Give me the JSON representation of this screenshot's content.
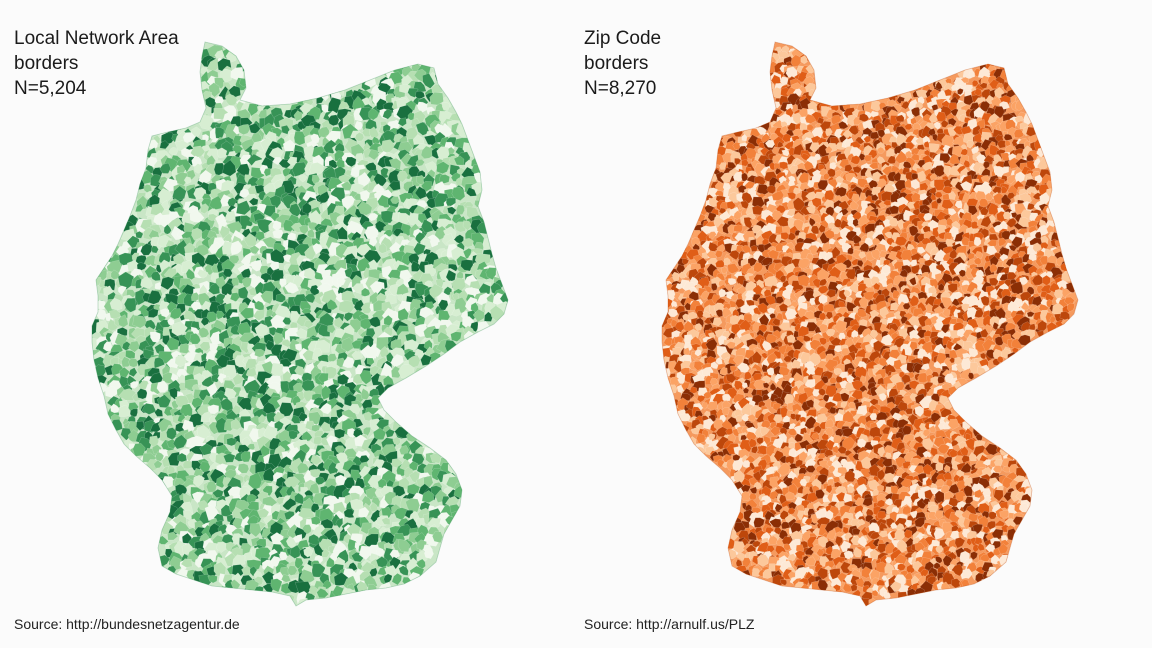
{
  "maps": [
    {
      "title_lines": [
        "Local Network Area",
        "borders",
        "N=5,204"
      ],
      "source": "Source: http://bundesnetzagentur.de",
      "palette": [
        "#f1f8ee",
        "#d7eed2",
        "#b6dfb2",
        "#8ecd92",
        "#5fb570",
        "#379356",
        "#19703f"
      ],
      "base_color": "#c9e6c6"
    },
    {
      "title_lines": [
        "Zip Code",
        "borders",
        "N=8,270"
      ],
      "source": "Source: http://arnulf.us/PLZ",
      "palette": [
        "#fde9d6",
        "#fcc89b",
        "#fba365",
        "#f2813a",
        "#e05e17",
        "#bd470b",
        "#8b2e05"
      ],
      "base_color": "#f59a5e"
    }
  ]
}
